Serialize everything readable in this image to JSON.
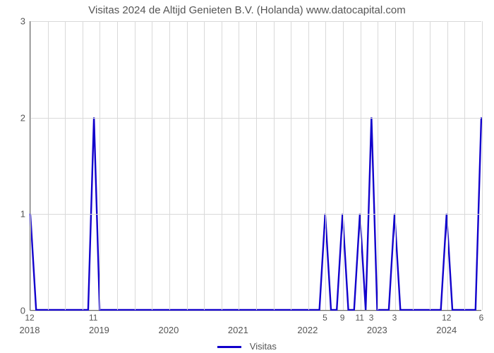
{
  "chart": {
    "type": "line",
    "title": "Visitas 2024 de Altijd Genieten B.V. (Holanda) www.datocapital.com",
    "title_fontsize": 15,
    "title_color": "#555555",
    "background_color": "#ffffff",
    "grid_color": "#d9d9d9",
    "axis_color": "#666666",
    "tick_font_color": "#555555",
    "tick_fontsize": 13,
    "line_color": "#1100cc",
    "line_width": 2.4,
    "x_months_total": 78,
    "ylim": [
      0,
      3
    ],
    "yticks": [
      0,
      1,
      2,
      3
    ],
    "year_ticks": [
      {
        "label": "2018",
        "month": 0
      },
      {
        "label": "2019",
        "month": 12
      },
      {
        "label": "2020",
        "month": 24
      },
      {
        "label": "2021",
        "month": 36
      },
      {
        "label": "2022",
        "month": 48
      },
      {
        "label": "2023",
        "month": 60
      },
      {
        "label": "2024",
        "month": 72
      }
    ],
    "minor_x_step_months": 3,
    "points": [
      {
        "month": 0,
        "y": 1
      },
      {
        "month": 1,
        "y": 0
      },
      {
        "month": 10,
        "y": 0
      },
      {
        "month": 11,
        "y": 2
      },
      {
        "month": 12,
        "y": 0
      },
      {
        "month": 50,
        "y": 0
      },
      {
        "month": 51,
        "y": 1
      },
      {
        "month": 52,
        "y": 0
      },
      {
        "month": 53,
        "y": 0
      },
      {
        "month": 54,
        "y": 1
      },
      {
        "month": 55,
        "y": 0
      },
      {
        "month": 56,
        "y": 0
      },
      {
        "month": 57,
        "y": 1
      },
      {
        "month": 58,
        "y": 0
      },
      {
        "month": 59,
        "y": 2
      },
      {
        "month": 60,
        "y": 0
      },
      {
        "month": 62,
        "y": 0
      },
      {
        "month": 63,
        "y": 1
      },
      {
        "month": 64,
        "y": 0
      },
      {
        "month": 71,
        "y": 0
      },
      {
        "month": 72,
        "y": 1
      },
      {
        "month": 73,
        "y": 0
      },
      {
        "month": 77,
        "y": 0
      },
      {
        "month": 78,
        "y": 2
      }
    ],
    "data_labels": [
      {
        "month": 0,
        "text": "12"
      },
      {
        "month": 11,
        "text": "11"
      },
      {
        "month": 51,
        "text": "5"
      },
      {
        "month": 54,
        "text": "9"
      },
      {
        "month": 57,
        "text": "11"
      },
      {
        "month": 59,
        "text": "3"
      },
      {
        "month": 63,
        "text": "3"
      },
      {
        "month": 72,
        "text": "12"
      },
      {
        "month": 78,
        "text": "6"
      }
    ],
    "legend_label": "Visitas"
  }
}
